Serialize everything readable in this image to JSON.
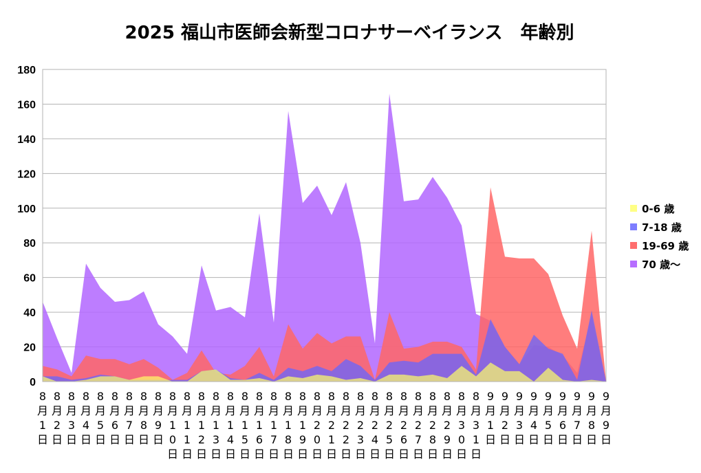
{
  "chart_data": {
    "type": "area",
    "title": "2025  福山市医師会新型コロナサーベイランス　年齢別",
    "xlabel": "",
    "ylabel": "",
    "ylim": [
      0,
      180
    ],
    "yticks": [
      0,
      20,
      40,
      60,
      80,
      100,
      120,
      140,
      160,
      180
    ],
    "grid": true,
    "legend_position": "right",
    "categories": [
      "8月1日",
      "8月2日",
      "8月3日",
      "8月4日",
      "8月5日",
      "8月6日",
      "8月7日",
      "8月8日",
      "8月9日",
      "8月10日",
      "8月11日",
      "8月12日",
      "8月13日",
      "8月14日",
      "8月15日",
      "8月16日",
      "8月17日",
      "8月18日",
      "8月19日",
      "8月20日",
      "8月21日",
      "8月22日",
      "8月23日",
      "8月24日",
      "8月25日",
      "8月26日",
      "8月27日",
      "8月28日",
      "8月29日",
      "8月30日",
      "8月31日",
      "9月1日",
      "9月2日",
      "9月3日",
      "9月4日",
      "9月5日",
      "9月6日",
      "9月7日",
      "9月8日",
      "9月9日"
    ],
    "series": [
      {
        "name": "70 歳～",
        "color": "#b266ff",
        "opacity": 0.85,
        "values": [
          46,
          25,
          5,
          68,
          54,
          46,
          47,
          52,
          33,
          26,
          16,
          67,
          41,
          43,
          37,
          97,
          34,
          156,
          103,
          113,
          96,
          115,
          80,
          22,
          166,
          104,
          105,
          118,
          106,
          90,
          39,
          35,
          20,
          10,
          21,
          20,
          15,
          5,
          38,
          0
        ]
      },
      {
        "name": "19-69 歳",
        "color": "#ff6666",
        "opacity": 0.85,
        "values": [
          9,
          7,
          3,
          15,
          13,
          13,
          10,
          13,
          8,
          1,
          5,
          18,
          5,
          4,
          9,
          20,
          3,
          33,
          19,
          28,
          22,
          26,
          26,
          1,
          40,
          19,
          20,
          23,
          23,
          20,
          7,
          112,
          72,
          71,
          71,
          62,
          38,
          19,
          87,
          0
        ]
      },
      {
        "name": "7-18 歳",
        "color": "#6666ff",
        "opacity": 0.75,
        "values": [
          3,
          3,
          1,
          2,
          4,
          3,
          1,
          1,
          1,
          1,
          1,
          6,
          7,
          2,
          1,
          5,
          1,
          8,
          6,
          9,
          6,
          13,
          9,
          1,
          11,
          12,
          11,
          16,
          16,
          16,
          4,
          36,
          20,
          10,
          27,
          19,
          16,
          1,
          41,
          0
        ]
      },
      {
        "name": "0-6 歳",
        "color": "#ffff66",
        "opacity": 0.7,
        "values": [
          3,
          0,
          0,
          1,
          3,
          3,
          1,
          3,
          3,
          0,
          0,
          6,
          7,
          1,
          1,
          2,
          0,
          3,
          2,
          4,
          3,
          1,
          2,
          0,
          4,
          4,
          3,
          4,
          2,
          9,
          3,
          11,
          6,
          6,
          0,
          8,
          1,
          0,
          1,
          0
        ]
      }
    ],
    "legend": [
      "0-6 歳",
      "7-18 歳",
      "19-69 歳",
      "70 歳～"
    ]
  }
}
